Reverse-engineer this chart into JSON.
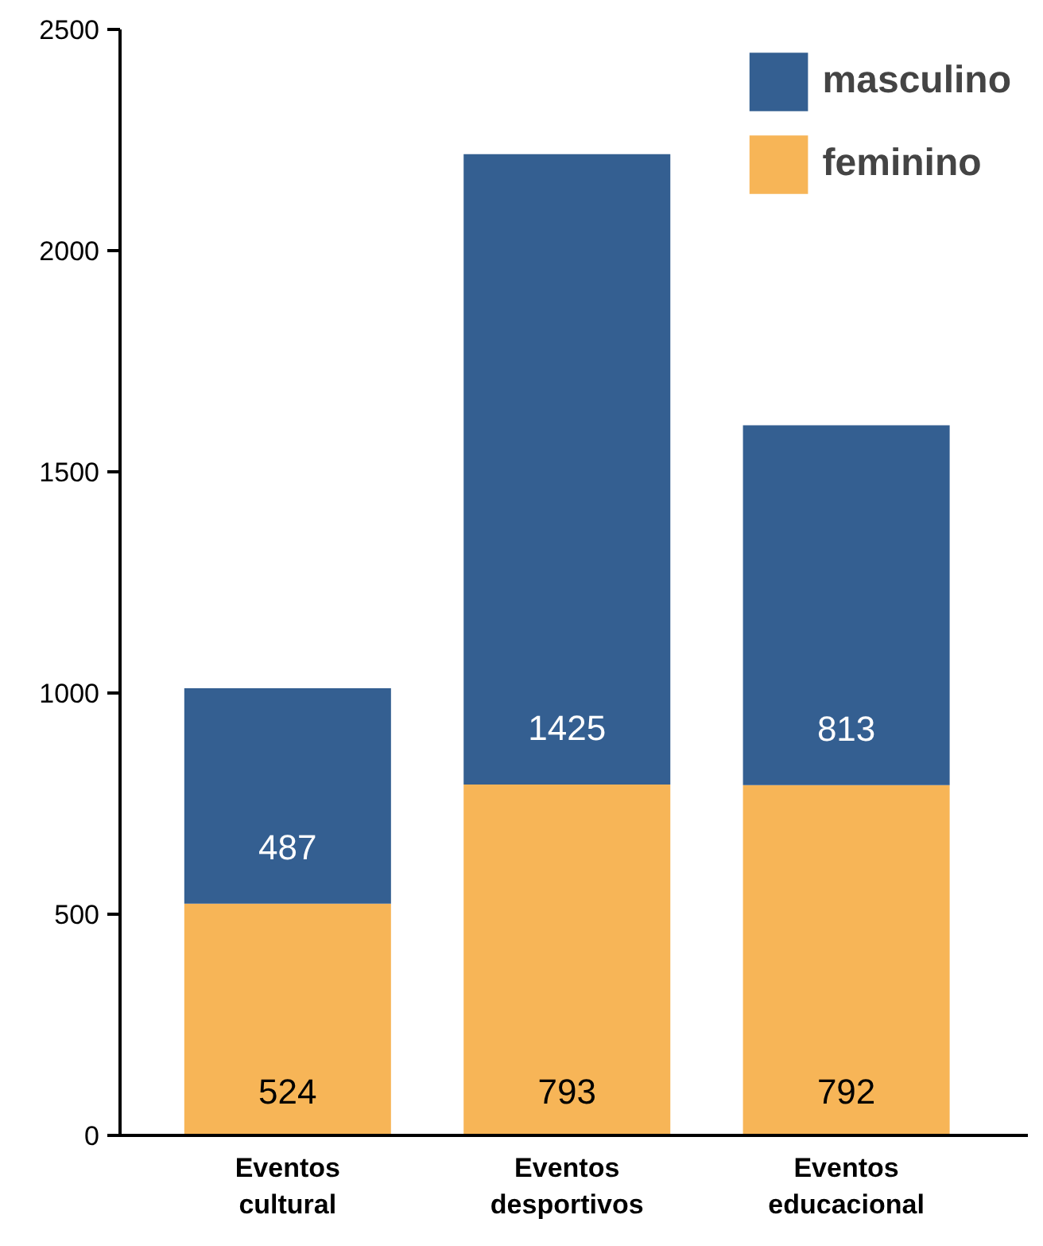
{
  "chart_data": {
    "type": "bar",
    "stacked": true,
    "categories": [
      "Eventos cultural",
      "Eventos desportivos",
      "Eventos educacional"
    ],
    "series": [
      {
        "name": "feminino",
        "color": "#f7b557",
        "values": [
          524,
          793,
          792
        ]
      },
      {
        "name": "masculino",
        "color": "#345f91",
        "values": [
          487,
          1425,
          813
        ]
      }
    ],
    "ylim": [
      0,
      2500
    ],
    "yticks": [
      0,
      500,
      1000,
      1500,
      2000,
      2500
    ],
    "grid": false,
    "legend": "top right",
    "data_labels": true
  }
}
